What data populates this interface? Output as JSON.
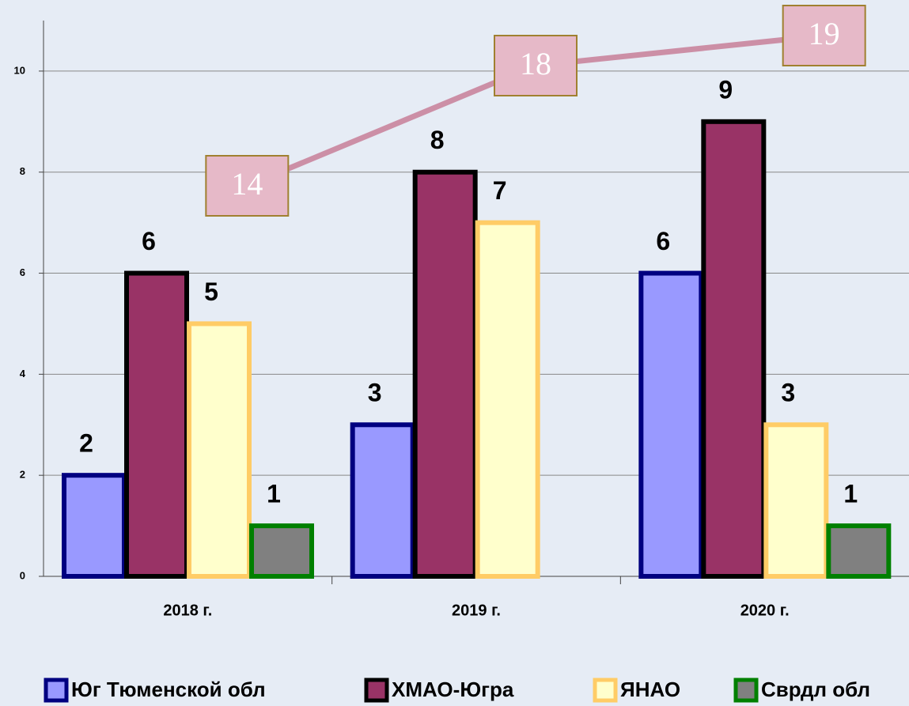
{
  "chart_data": {
    "type": "bar",
    "categories": [
      "2018 г.",
      "2019 г.",
      "2020 г."
    ],
    "series": [
      {
        "name": "Юг Тюменской обл",
        "color": "#9999ff",
        "stroke": "#000080",
        "values": [
          2,
          3,
          6
        ]
      },
      {
        "name": "ХМАО-Югра",
        "color": "#993366",
        "stroke": "#000000",
        "values": [
          6,
          8,
          9
        ]
      },
      {
        "name": "ЯНАО",
        "color": "#ffffcc",
        "stroke": "#ffcc66",
        "values": [
          5,
          7,
          3
        ]
      },
      {
        "name": "Сврдл обл",
        "color": "#808080",
        "stroke": "#008000",
        "values": [
          1,
          null,
          1
        ]
      },
      {
        "type": "line",
        "axis": "y2",
        "color": "#cc8fa6",
        "values": [
          14,
          18,
          19
        ]
      }
    ],
    "ylim": [
      0,
      11
    ],
    "yticks": [
      0,
      2,
      4,
      6,
      8,
      10
    ],
    "y2lim": [
      1,
      19.5
    ],
    "grid": true,
    "legend": "bottom"
  }
}
